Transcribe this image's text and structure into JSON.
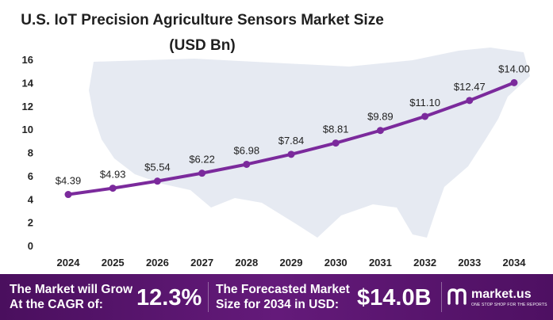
{
  "title_line1": "U.S. IoT Precision Agriculture Sensors Market Size",
  "title_line2": "(USD Bn)",
  "chart_data": {
    "type": "line",
    "x": [
      "2024",
      "2025",
      "2026",
      "2027",
      "2028",
      "2029",
      "2030",
      "2031",
      "2032",
      "2033",
      "2034"
    ],
    "values": [
      4.39,
      4.93,
      5.54,
      6.22,
      6.98,
      7.84,
      8.81,
      9.89,
      11.1,
      12.47,
      14.0
    ],
    "data_labels": [
      "$4.39",
      "$4.93",
      "$5.54",
      "$6.22",
      "$6.98",
      "$7.84",
      "$8.81",
      "$9.89",
      "$11.10",
      "$12.47",
      "$14.00"
    ],
    "ylim": [
      0,
      16
    ],
    "yticks": [
      "0",
      "2",
      "4",
      "6",
      "8",
      "10",
      "12",
      "14",
      "16"
    ],
    "line_color": "#7b2a9c",
    "grid": false,
    "legend": "none"
  },
  "footer": {
    "cagr_text_line1": "The Market will Grow",
    "cagr_text_line2": "At the CAGR of:",
    "cagr_value": "12.3%",
    "forecast_text_line1": "The Forecasted Market",
    "forecast_text_line2": "Size for 2034 in USD:",
    "forecast_value": "$14.0B",
    "logo_name": "market.us",
    "logo_tagline": "ONE STOP SHOP FOR THE REPORTS",
    "background_color": "#5b1670"
  }
}
